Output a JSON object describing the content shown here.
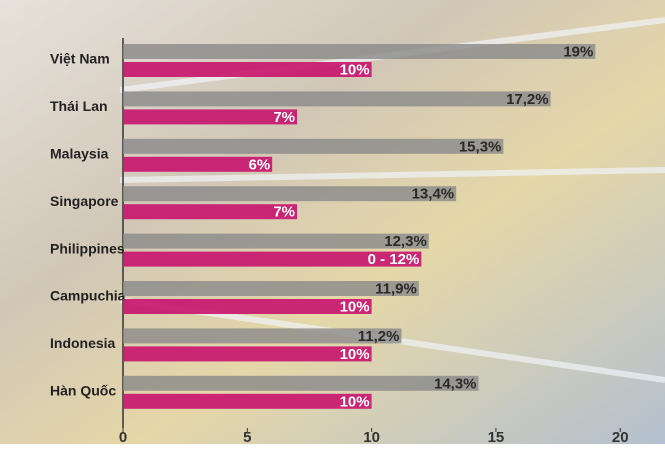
{
  "chart_data": {
    "type": "bar",
    "orientation": "horizontal",
    "categories": [
      "Việt Nam",
      "Thái Lan",
      "Malaysia",
      "Singapore",
      "Philippines",
      "Campuchia",
      "Indonesia",
      "Hàn Quốc"
    ],
    "series": [
      {
        "color": "#8a8a8a",
        "values": [
          19,
          17.2,
          15.3,
          13.4,
          12.3,
          11.9,
          11.2,
          14.3
        ],
        "value_labels": [
          "19%",
          "17,2%",
          "15,3%",
          "13,4%",
          "12,3%",
          "11,9%",
          "11,2%",
          "14,3%"
        ]
      },
      {
        "color": "#c8176f",
        "values": [
          10,
          7,
          6,
          7,
          12,
          10,
          10,
          10
        ],
        "value_labels": [
          "10%",
          "7%",
          "6%",
          "7%",
          "0 - 12%",
          "10%",
          "10%",
          "10%"
        ]
      }
    ],
    "xlim": [
      0,
      21.8
    ],
    "xticks": [
      0,
      5,
      10,
      15,
      20
    ]
  }
}
